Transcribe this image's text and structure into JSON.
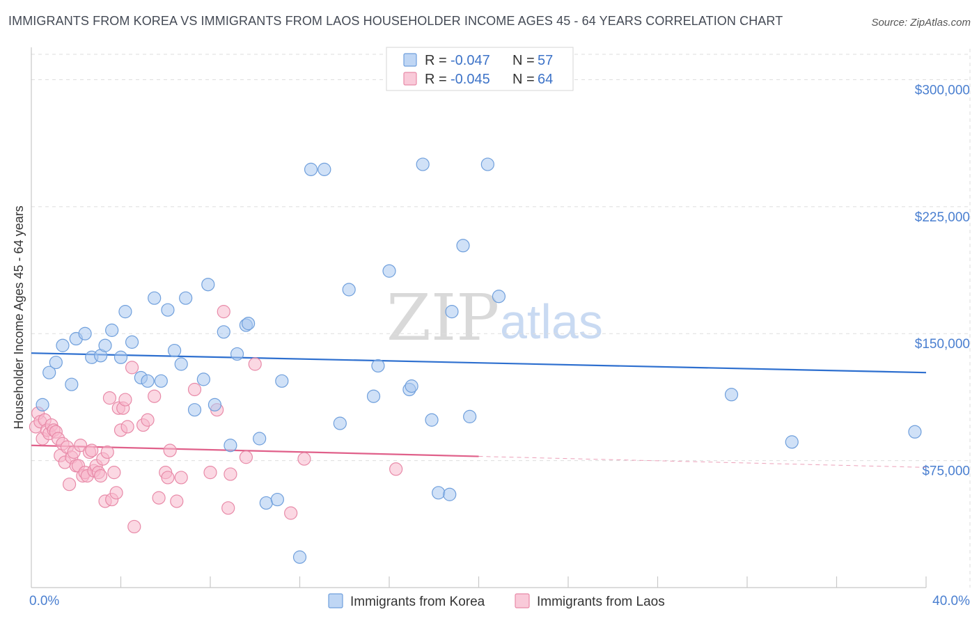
{
  "title": "IMMIGRANTS FROM KOREA VS IMMIGRANTS FROM LAOS HOUSEHOLDER INCOME AGES 45 - 64 YEARS CORRELATION CHART",
  "source": "Source: ZipAtlas.com",
  "watermark": {
    "zip": "ZIP",
    "atlas": "atlas"
  },
  "legend": {
    "r_label": "R =",
    "n_label": "N =",
    "korea": {
      "r": "-0.047",
      "n": "57"
    },
    "laos": {
      "r": "-0.045",
      "n": "64"
    }
  },
  "colors": {
    "korea_fill": "#a9c8f0",
    "korea_stroke": "#6f9fdc",
    "korea_line": "#2d6fcf",
    "laos_fill": "#f7b8cc",
    "laos_stroke": "#e88aa8",
    "laos_line": "#e0608a",
    "tick_text": "#4a7fd0",
    "grid": "#dddddd"
  },
  "chart_data": {
    "type": "scatter",
    "title": "IMMIGRANTS FROM KOREA VS IMMIGRANTS FROM LAOS HOUSEHOLDER INCOME AGES 45 - 64 YEARS CORRELATION CHART",
    "xlabel": "",
    "ylabel": "Householder Income Ages 45 - 64 years",
    "xlim": [
      0,
      40
    ],
    "ylim": [
      0,
      315000
    ],
    "x_tick_labels": [
      "0.0%",
      "40.0%"
    ],
    "y_ticks": [
      75000,
      150000,
      225000,
      300000
    ],
    "y_tick_labels": [
      "$75,000",
      "$150,000",
      "$225,000",
      "$300,000"
    ],
    "grid": true,
    "legend_position": "top-center",
    "series": [
      {
        "name": "Immigrants from Korea",
        "r": -0.047,
        "n": 57,
        "trend": {
          "x": [
            0,
            40
          ],
          "y": [
            138500,
            127000
          ]
        },
        "points": [
          [
            0.5,
            108000
          ],
          [
            0.8,
            127000
          ],
          [
            1.1,
            133000
          ],
          [
            1.4,
            143000
          ],
          [
            1.8,
            120000
          ],
          [
            2.0,
            147000
          ],
          [
            2.4,
            150000
          ],
          [
            2.7,
            136000
          ],
          [
            3.1,
            137000
          ],
          [
            3.3,
            143000
          ],
          [
            3.6,
            152000
          ],
          [
            4.0,
            136000
          ],
          [
            4.2,
            163000
          ],
          [
            4.5,
            145000
          ],
          [
            4.9,
            124000
          ],
          [
            5.2,
            122000
          ],
          [
            5.5,
            171000
          ],
          [
            5.8,
            122000
          ],
          [
            6.1,
            164000
          ],
          [
            6.4,
            140000
          ],
          [
            6.7,
            132000
          ],
          [
            6.9,
            171000
          ],
          [
            7.3,
            105000
          ],
          [
            7.7,
            123000
          ],
          [
            7.9,
            179000
          ],
          [
            8.2,
            108000
          ],
          [
            8.6,
            151000
          ],
          [
            8.9,
            84000
          ],
          [
            9.2,
            138000
          ],
          [
            9.6,
            155000
          ],
          [
            9.7,
            156000
          ],
          [
            10.2,
            88000
          ],
          [
            10.5,
            50000
          ],
          [
            11.0,
            52000
          ],
          [
            11.2,
            122000
          ],
          [
            12.0,
            18000
          ],
          [
            12.5,
            247000
          ],
          [
            13.1,
            247000
          ],
          [
            13.8,
            97000
          ],
          [
            14.2,
            176000
          ],
          [
            15.3,
            113000
          ],
          [
            15.5,
            131000
          ],
          [
            16.0,
            187000
          ],
          [
            16.9,
            117000
          ],
          [
            17.0,
            119000
          ],
          [
            17.5,
            250000
          ],
          [
            17.9,
            99000
          ],
          [
            18.2,
            56000
          ],
          [
            18.7,
            55000
          ],
          [
            18.8,
            163000
          ],
          [
            19.3,
            202000
          ],
          [
            19.6,
            101000
          ],
          [
            20.4,
            250000
          ],
          [
            20.9,
            172000
          ],
          [
            31.3,
            114000
          ],
          [
            34.0,
            86000
          ],
          [
            39.5,
            92000
          ]
        ]
      },
      {
        "name": "Immigrants from Laos",
        "r": -0.045,
        "n": 64,
        "trend": {
          "x": [
            0,
            20
          ],
          "y": [
            84000,
            77500
          ]
        },
        "trend_dashed": {
          "x": [
            20,
            40
          ],
          "y": [
            77500,
            71000
          ]
        },
        "points": [
          [
            0.2,
            95000
          ],
          [
            0.3,
            103000
          ],
          [
            0.4,
            98000
          ],
          [
            0.5,
            88000
          ],
          [
            0.6,
            99000
          ],
          [
            0.7,
            93000
          ],
          [
            0.8,
            91000
          ],
          [
            0.9,
            96000
          ],
          [
            1.0,
            93000
          ],
          [
            1.1,
            92000
          ],
          [
            1.2,
            88000
          ],
          [
            1.3,
            78000
          ],
          [
            1.4,
            85000
          ],
          [
            1.5,
            74000
          ],
          [
            1.6,
            83000
          ],
          [
            1.7,
            61000
          ],
          [
            1.8,
            77000
          ],
          [
            1.9,
            80000
          ],
          [
            2.0,
            72000
          ],
          [
            2.1,
            72000
          ],
          [
            2.2,
            84000
          ],
          [
            2.3,
            66000
          ],
          [
            2.4,
            68000
          ],
          [
            2.5,
            66000
          ],
          [
            2.6,
            80000
          ],
          [
            2.7,
            81000
          ],
          [
            2.8,
            69000
          ],
          [
            2.9,
            72000
          ],
          [
            3.0,
            68000
          ],
          [
            3.1,
            66000
          ],
          [
            3.2,
            76000
          ],
          [
            3.3,
            51000
          ],
          [
            3.4,
            80000
          ],
          [
            3.5,
            112000
          ],
          [
            3.6,
            52000
          ],
          [
            3.7,
            68000
          ],
          [
            3.8,
            56000
          ],
          [
            3.9,
            106000
          ],
          [
            4.0,
            93000
          ],
          [
            4.1,
            106000
          ],
          [
            4.2,
            111000
          ],
          [
            4.3,
            95000
          ],
          [
            4.5,
            130000
          ],
          [
            4.6,
            36000
          ],
          [
            5.0,
            96000
          ],
          [
            5.2,
            99000
          ],
          [
            5.5,
            113000
          ],
          [
            5.7,
            53000
          ],
          [
            6.0,
            68000
          ],
          [
            6.1,
            65000
          ],
          [
            6.2,
            81000
          ],
          [
            6.5,
            51000
          ],
          [
            6.7,
            65000
          ],
          [
            7.3,
            117000
          ],
          [
            8.0,
            68000
          ],
          [
            8.3,
            105000
          ],
          [
            8.6,
            163000
          ],
          [
            8.8,
            47000
          ],
          [
            8.9,
            67000
          ],
          [
            9.6,
            77000
          ],
          [
            10.0,
            132000
          ],
          [
            11.6,
            44000
          ],
          [
            12.2,
            76000
          ],
          [
            16.3,
            70000
          ]
        ]
      }
    ]
  },
  "bottom_legend": {
    "korea": "Immigrants from Korea",
    "laos": "Immigrants from Laos"
  }
}
